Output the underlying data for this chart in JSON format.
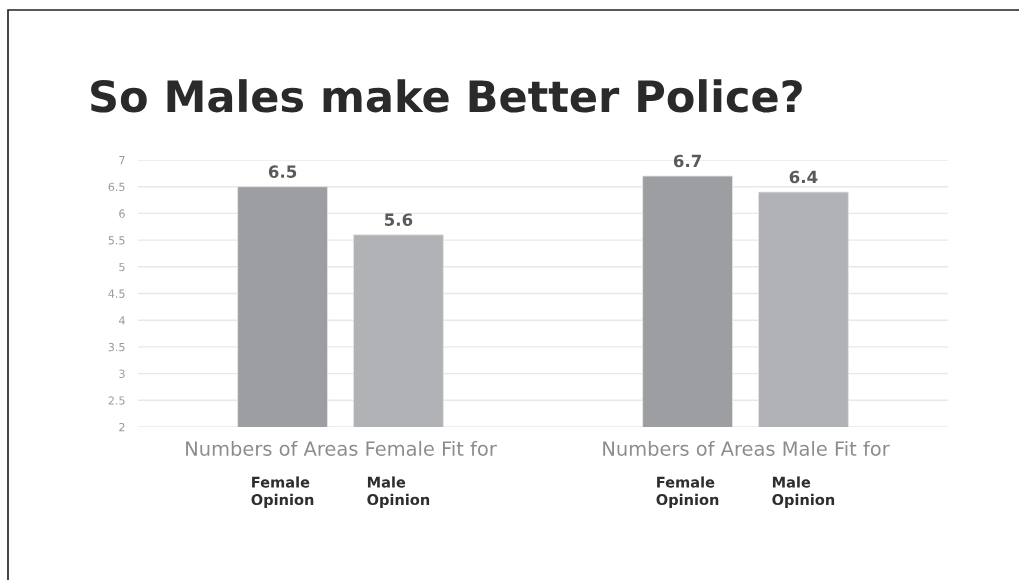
{
  "chart_data": {
    "type": "bar",
    "title": "So Males make Better Police?",
    "categories": [
      "Numbers of Areas Female Fit for",
      "Numbers of Areas Male Fit for"
    ],
    "series": [
      {
        "name": "Female\nOpinion",
        "color": "#9d9ea2",
        "values": [
          6.5,
          6.7
        ]
      },
      {
        "name": "Male\nOpinion",
        "color": "#b1b2b5",
        "values": [
          5.6,
          6.4
        ]
      }
    ],
    "ylim": [
      2,
      7
    ],
    "yticks": [
      2,
      2.5,
      3,
      3.5,
      4,
      4.5,
      5,
      5.5,
      6,
      6.5,
      7
    ],
    "grid": "y",
    "data_labels": true
  }
}
